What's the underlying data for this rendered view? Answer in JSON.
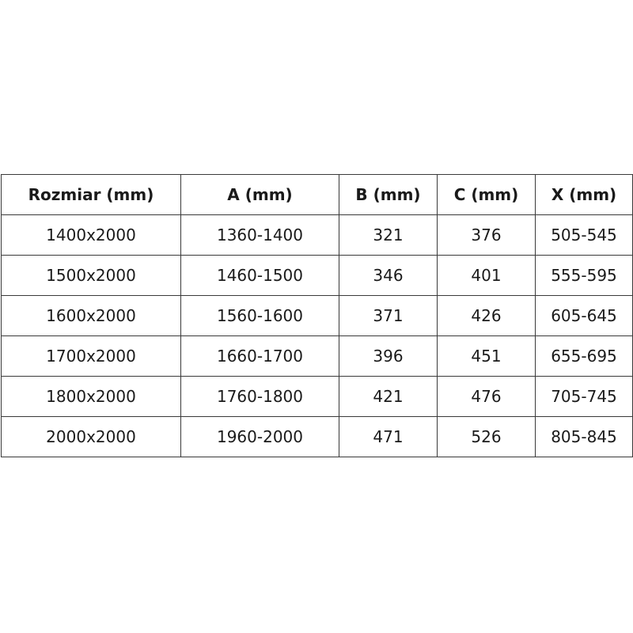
{
  "table": {
    "headers": [
      "Rozmiar (mm)",
      "A (mm)",
      "B (mm)",
      "C (mm)",
      "X (mm)"
    ],
    "rows": [
      [
        "1400x2000",
        "1360-1400",
        "321",
        "376",
        "505-545"
      ],
      [
        "1500x2000",
        "1460-1500",
        "346",
        "401",
        "555-595"
      ],
      [
        "1600x2000",
        "1560-1600",
        "371",
        "426",
        "605-645"
      ],
      [
        "1700x2000",
        "1660-1700",
        "396",
        "451",
        "655-695"
      ],
      [
        "1800x2000",
        "1760-1800",
        "421",
        "476",
        "705-745"
      ],
      [
        "2000x2000",
        "1960-2000",
        "471",
        "526",
        "805-845"
      ]
    ]
  }
}
